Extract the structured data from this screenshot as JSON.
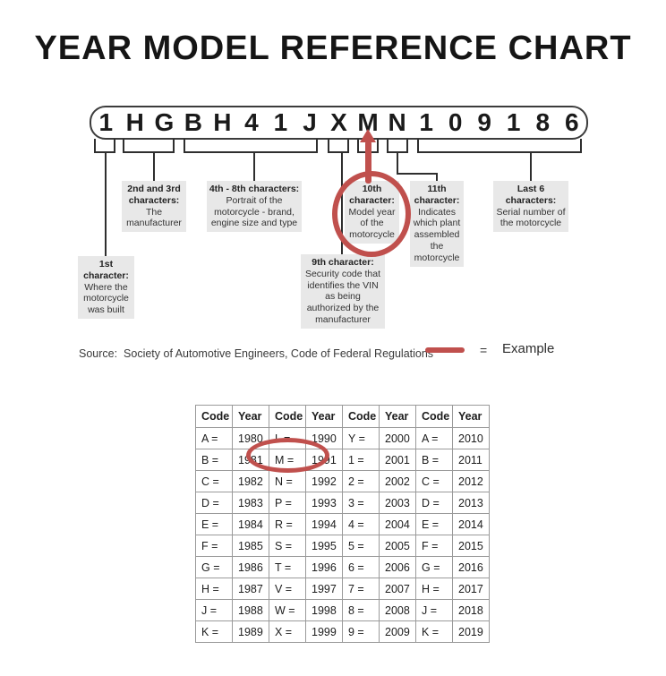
{
  "title": "YEAR MODEL REFERENCE CHART",
  "vin": {
    "characters": [
      "1",
      "H",
      "G",
      "B",
      "H",
      "4",
      "1",
      "J",
      "X",
      "M",
      "N",
      "1",
      "0",
      "9",
      "1",
      "8",
      "6"
    ]
  },
  "callouts": {
    "first": {
      "title": "1st character:",
      "body": "Where the motorcycle was built"
    },
    "second_third": {
      "title": "2nd and 3rd characters:",
      "body": "The manufacturer"
    },
    "fourth_eighth": {
      "title": "4th - 8th characters:",
      "body": "Portrait of the motorcycle - brand, engine size and type"
    },
    "ninth": {
      "title": "9th character:",
      "body": "Security code that identifies the VIN as being authorized by the manufacturer"
    },
    "tenth": {
      "title": "10th character:",
      "body": "Model year of the motorcycle"
    },
    "eleventh": {
      "title": "11th character:",
      "body": "Indicates which plant assembled the motorcycle"
    },
    "last_six": {
      "title": "Last 6 characters:",
      "body": "Serial number of the motorcycle"
    }
  },
  "annotations": {
    "circled_vin_position": "10th character (M)",
    "circled_table_entry": "M = 1991"
  },
  "source_line": "Source:  Society of Automotive Engineers, Code of Federal Regulations",
  "legend": {
    "equals": "=",
    "label": "Example"
  },
  "colors": {
    "accent_red": "#c0504d",
    "callout_bg": "#e8e8e8"
  },
  "table": {
    "headers": [
      "Code",
      "Year",
      "Code",
      "Year",
      "Code",
      "Year",
      "Code",
      "Year"
    ],
    "code_suffix": " =",
    "rows": [
      [
        "A",
        "1980",
        "L",
        "1990",
        "Y",
        "2000",
        "A",
        "2010"
      ],
      [
        "B",
        "1981",
        "M",
        "1991",
        "1",
        "2001",
        "B",
        "2011"
      ],
      [
        "C",
        "1982",
        "N",
        "1992",
        "2",
        "2002",
        "C",
        "2012"
      ],
      [
        "D",
        "1983",
        "P",
        "1993",
        "3",
        "2003",
        "D",
        "2013"
      ],
      [
        "E",
        "1984",
        "R",
        "1994",
        "4",
        "2004",
        "E",
        "2014"
      ],
      [
        "F",
        "1985",
        "S",
        "1995",
        "5",
        "2005",
        "F",
        "2015"
      ],
      [
        "G",
        "1986",
        "T",
        "1996",
        "6",
        "2006",
        "G",
        "2016"
      ],
      [
        "H",
        "1987",
        "V",
        "1997",
        "7",
        "2007",
        "H",
        "2017"
      ],
      [
        "J",
        "1988",
        "W",
        "1998",
        "8",
        "2008",
        "J",
        "2018"
      ],
      [
        "K",
        "1989",
        "X",
        "1999",
        "9",
        "2009",
        "K",
        "2019"
      ]
    ]
  }
}
